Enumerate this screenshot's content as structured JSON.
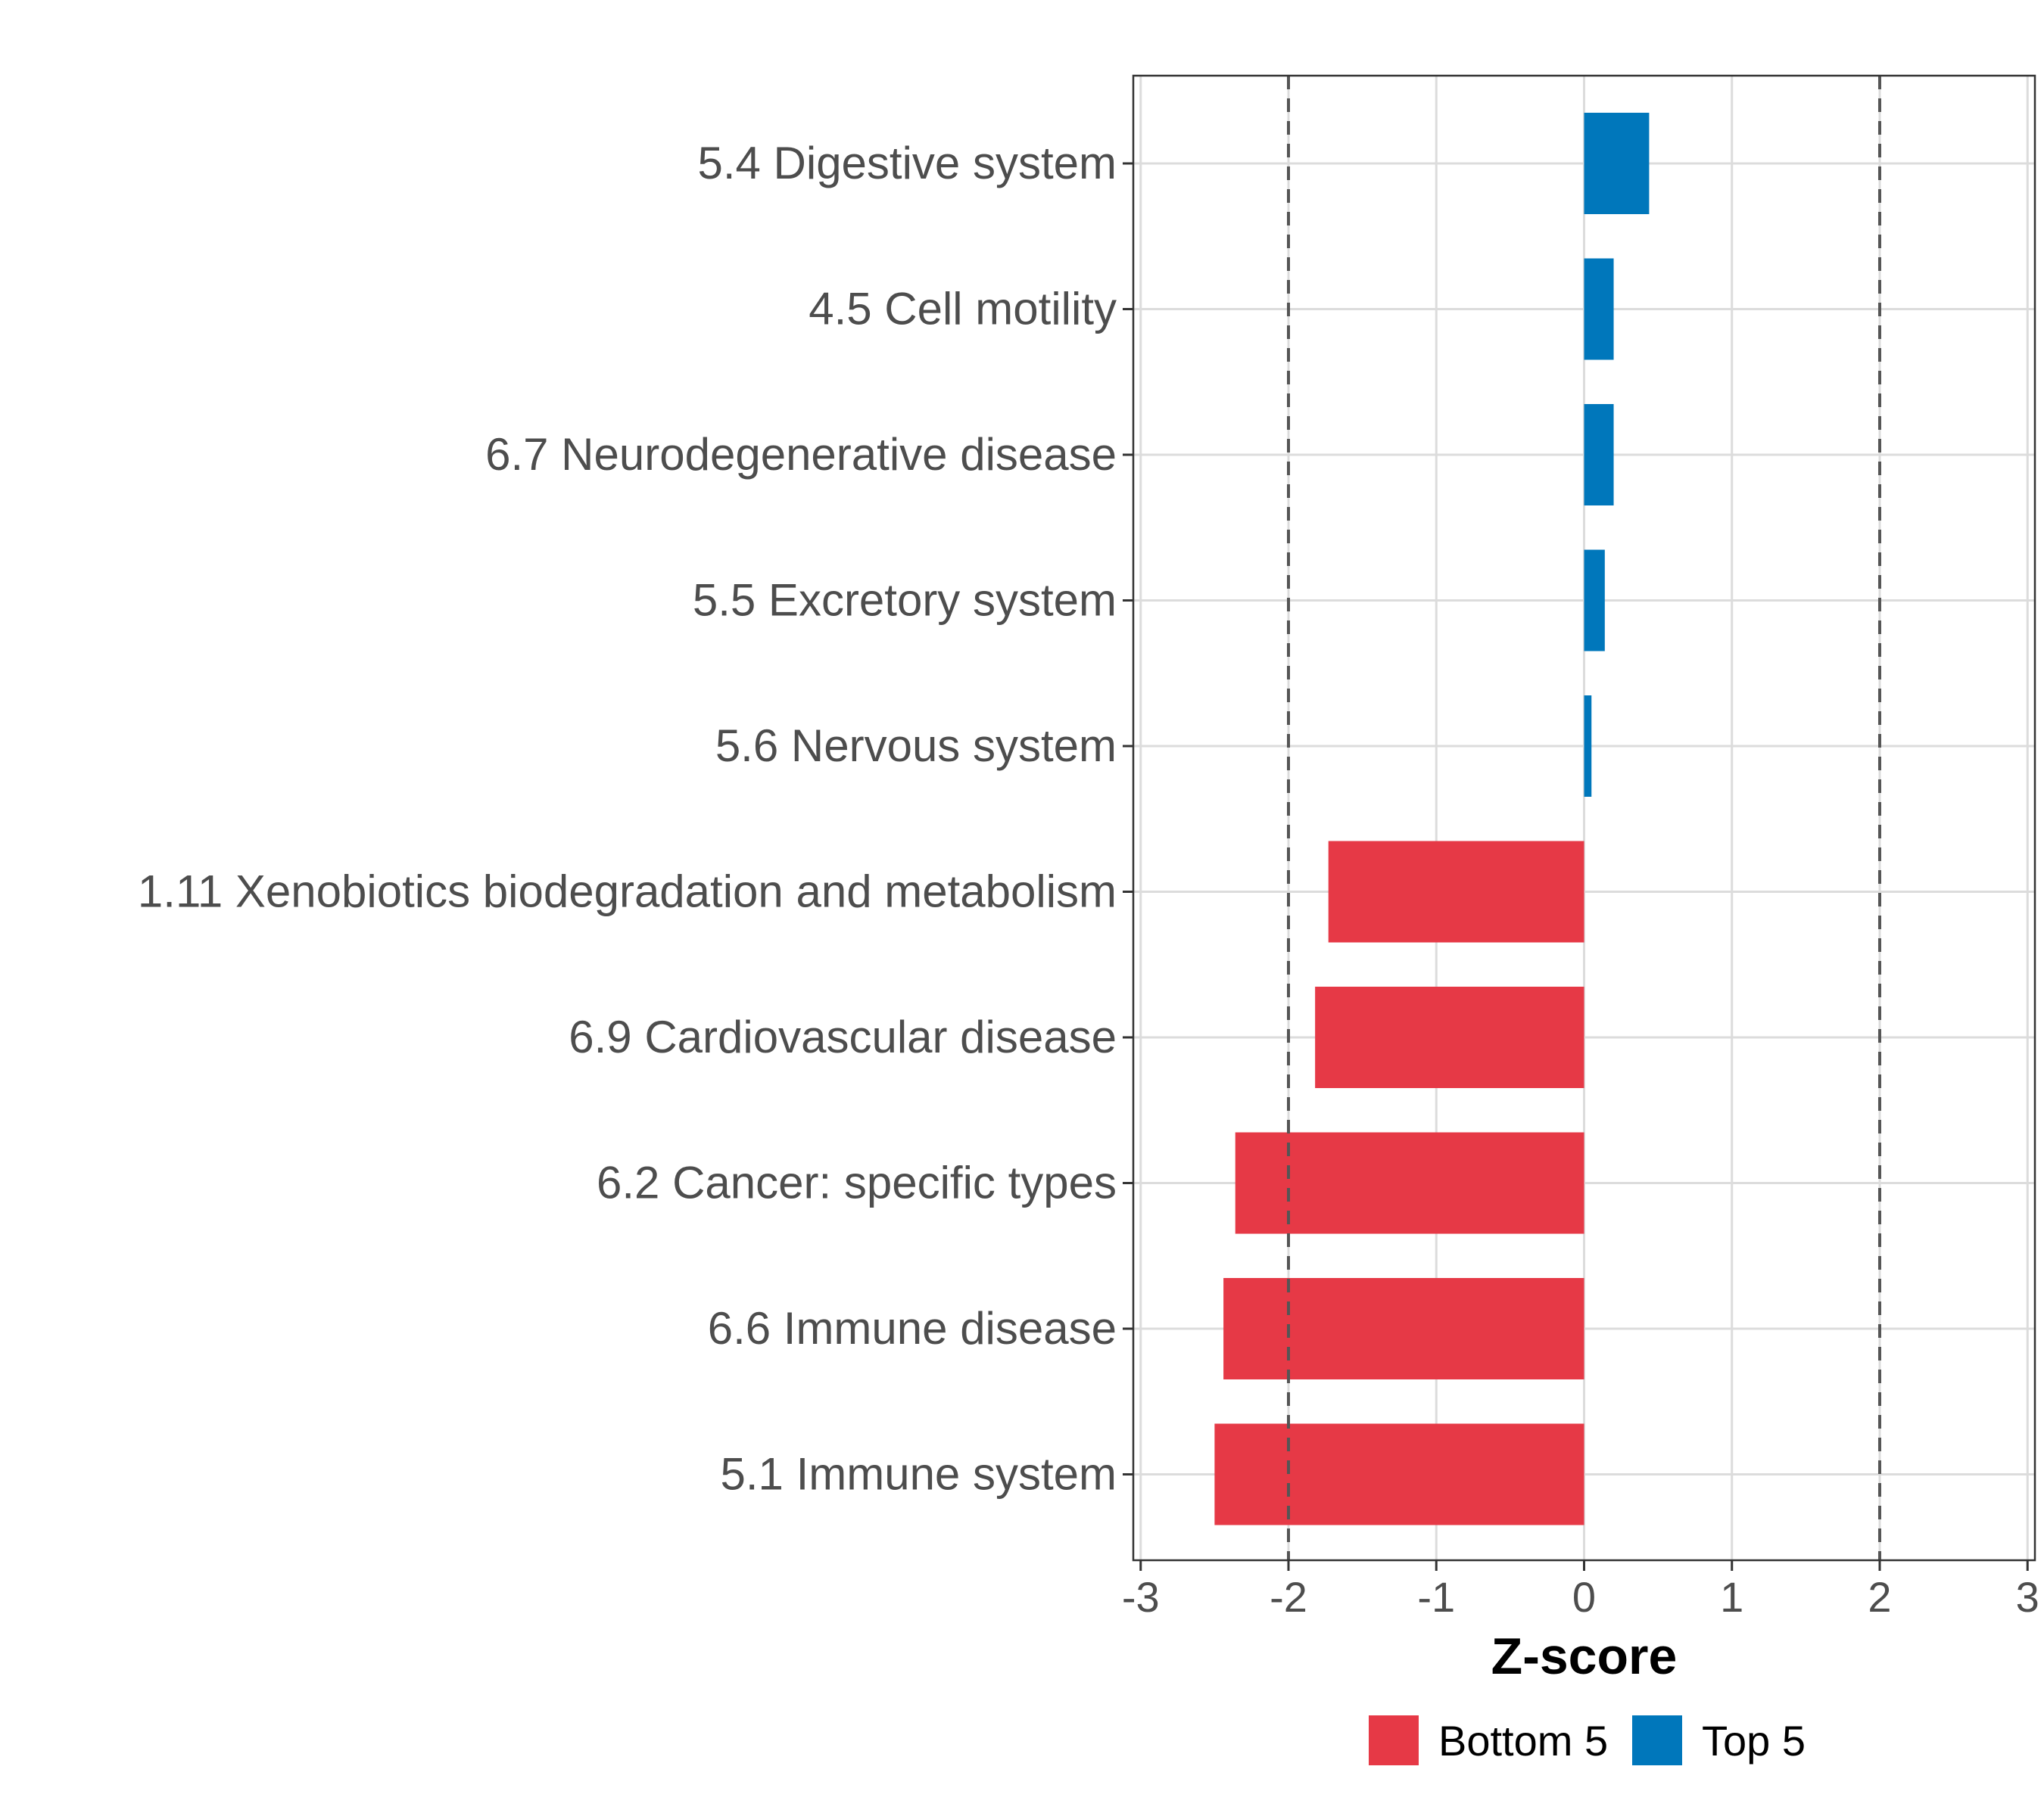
{
  "chart_data": {
    "type": "bar",
    "orientation": "horizontal",
    "categories": [
      "5.4 Digestive system",
      "4.5 Cell motility",
      "6.7 Neurodegenerative disease",
      "5.5 Excretory system",
      "5.6 Nervous system",
      "1.11 Xenobiotics biodegradation and metabolism",
      "6.9 Cardiovascular disease",
      "6.2 Cancer: specific types",
      "6.6 Immune disease",
      "5.1 Immune system"
    ],
    "values": [
      0.44,
      0.2,
      0.2,
      0.14,
      0.05,
      -1.73,
      -1.82,
      -2.36,
      -2.44,
      -2.5
    ],
    "groups": [
      "Top 5",
      "Top 5",
      "Top 5",
      "Top 5",
      "Top 5",
      "Bottom 5",
      "Bottom 5",
      "Bottom 5",
      "Bottom 5",
      "Bottom 5"
    ],
    "xlabel": "Z-score",
    "ylabel": "",
    "xlim": [
      -3.05,
      3.05
    ],
    "xticks": [
      -3,
      -2,
      -1,
      0,
      1,
      2,
      3
    ],
    "xtick_labels": [
      "-3",
      "-2",
      "-1",
      "0",
      "1",
      "2",
      "3"
    ],
    "reference_lines": [
      -2,
      2
    ],
    "grid": true,
    "legend": {
      "position": "bottom",
      "items": [
        {
          "label": "Bottom 5",
          "color": "#e63946"
        },
        {
          "label": "Top 5",
          "color": "#0077bb"
        }
      ]
    }
  }
}
